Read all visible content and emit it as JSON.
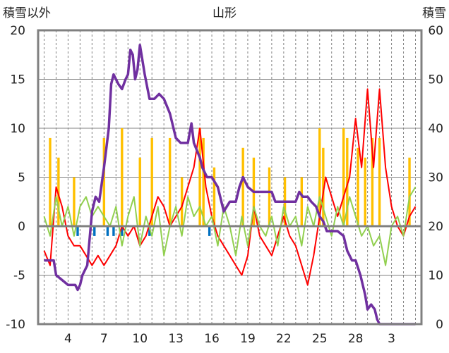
{
  "chart_data": {
    "type": "line",
    "title": "山形",
    "left_axis_label": "積雪以外",
    "right_axis_label": "積雪",
    "left_ylim": [
      -10,
      20
    ],
    "right_ylim": [
      0,
      60
    ],
    "left_ticks": [
      "20",
      "15",
      "10",
      "5",
      "0",
      "-5",
      "-10"
    ],
    "right_ticks": [
      "60",
      "50",
      "40",
      "30",
      "20",
      "10",
      "0"
    ],
    "x_tick_labels": [
      "4",
      "7",
      "10",
      "13",
      "16",
      "19",
      "22",
      "25",
      "28",
      "3"
    ],
    "grid": true,
    "colors": {
      "precip": "#ffc000",
      "temp": "#ff0000",
      "green": "#92d050",
      "blue": "#0070c0",
      "snow": "#7030a0",
      "grid": "#808080",
      "frame": "#808080"
    },
    "series": [
      {
        "color": "#ff0000",
        "axis": "left",
        "points": [
          [
            2.0,
            -2.5
          ],
          [
            2.5,
            -4
          ],
          [
            3.0,
            4
          ],
          [
            3.5,
            2
          ],
          [
            4.0,
            -1
          ],
          [
            4.5,
            -2
          ],
          [
            5.0,
            -2
          ],
          [
            5.5,
            -3
          ],
          [
            6.0,
            -4
          ],
          [
            6.5,
            -3
          ],
          [
            7.0,
            -4
          ],
          [
            7.5,
            -3
          ],
          [
            8.0,
            -2
          ],
          [
            8.5,
            0
          ],
          [
            9.0,
            -1
          ],
          [
            9.5,
            0
          ],
          [
            10.0,
            -2
          ],
          [
            10.5,
            -1
          ],
          [
            11.0,
            1
          ],
          [
            11.5,
            3
          ],
          [
            12.0,
            2
          ],
          [
            12.5,
            0
          ],
          [
            13.0,
            1
          ],
          [
            13.5,
            2
          ],
          [
            14.0,
            4
          ],
          [
            14.5,
            6
          ],
          [
            15.0,
            10
          ],
          [
            15.5,
            4
          ],
          [
            16.0,
            1
          ],
          [
            16.5,
            -1
          ],
          [
            17.0,
            -2
          ],
          [
            17.5,
            -3
          ],
          [
            18.0,
            -4
          ],
          [
            18.5,
            -5
          ],
          [
            19.0,
            -3
          ],
          [
            19.5,
            2
          ],
          [
            20.0,
            -1
          ],
          [
            20.5,
            -2
          ],
          [
            21.0,
            -3
          ],
          [
            21.5,
            -1
          ],
          [
            22.0,
            1
          ],
          [
            22.5,
            -1
          ],
          [
            23.0,
            -2
          ],
          [
            23.5,
            -4
          ],
          [
            24.0,
            -6
          ],
          [
            24.5,
            -3
          ],
          [
            25.0,
            1
          ],
          [
            25.5,
            5
          ],
          [
            26.0,
            3
          ],
          [
            26.5,
            1
          ],
          [
            27.0,
            3
          ],
          [
            27.5,
            5
          ],
          [
            28.0,
            11
          ],
          [
            28.5,
            6
          ],
          [
            29.0,
            14
          ],
          [
            29.5,
            6
          ],
          [
            30.0,
            14
          ],
          [
            30.5,
            6
          ],
          [
            31.0,
            2
          ],
          [
            31.5,
            0
          ],
          [
            32.0,
            -1
          ],
          [
            32.5,
            1
          ],
          [
            33.0,
            2
          ]
        ]
      },
      {
        "color": "#92d050",
        "axis": "left",
        "points": [
          [
            2.0,
            1
          ],
          [
            2.5,
            -1
          ],
          [
            3.0,
            3
          ],
          [
            3.5,
            0
          ],
          [
            4.0,
            2
          ],
          [
            4.5,
            -1
          ],
          [
            5.0,
            2
          ],
          [
            5.5,
            3
          ],
          [
            6.0,
            1
          ],
          [
            6.5,
            2
          ],
          [
            7.0,
            1
          ],
          [
            7.5,
            0
          ],
          [
            8.0,
            2
          ],
          [
            8.5,
            -2
          ],
          [
            9.0,
            1
          ],
          [
            9.5,
            3
          ],
          [
            10.0,
            -2
          ],
          [
            10.5,
            1
          ],
          [
            11.0,
            -1
          ],
          [
            11.5,
            2
          ],
          [
            12.0,
            -3
          ],
          [
            12.5,
            0
          ],
          [
            13.0,
            2
          ],
          [
            13.5,
            -1
          ],
          [
            14.0,
            3
          ],
          [
            14.5,
            1
          ],
          [
            15.0,
            2
          ],
          [
            15.5,
            0
          ],
          [
            16.0,
            1
          ],
          [
            16.5,
            -2
          ],
          [
            17.0,
            2
          ],
          [
            17.5,
            0
          ],
          [
            18.0,
            -3
          ],
          [
            18.5,
            1
          ],
          [
            19.0,
            -2
          ],
          [
            19.5,
            2
          ],
          [
            20.0,
            0
          ],
          [
            20.5,
            -1
          ],
          [
            21.0,
            1
          ],
          [
            21.5,
            -2
          ],
          [
            22.0,
            2
          ],
          [
            22.5,
            0
          ],
          [
            23.0,
            1
          ],
          [
            23.5,
            -2
          ],
          [
            24.0,
            2
          ],
          [
            24.5,
            0
          ],
          [
            25.0,
            3
          ],
          [
            25.5,
            1
          ],
          [
            26.0,
            -1
          ],
          [
            26.5,
            2
          ],
          [
            27.0,
            0
          ],
          [
            27.5,
            3
          ],
          [
            28.0,
            1
          ],
          [
            28.5,
            -1
          ],
          [
            29.0,
            0
          ],
          [
            29.5,
            -2
          ],
          [
            30.0,
            -1
          ],
          [
            30.5,
            -4
          ],
          [
            31.0,
            0
          ],
          [
            31.5,
            1
          ],
          [
            32.0,
            -1
          ],
          [
            32.5,
            3
          ],
          [
            33.0,
            4
          ]
        ]
      },
      {
        "color": "#7030a0",
        "axis": "right",
        "points": [
          [
            2.0,
            13
          ],
          [
            2.8,
            13
          ],
          [
            3.0,
            10
          ],
          [
            3.5,
            9
          ],
          [
            4.0,
            8
          ],
          [
            4.3,
            8
          ],
          [
            4.6,
            8
          ],
          [
            4.8,
            7
          ],
          [
            5.0,
            8
          ],
          [
            5.2,
            10
          ],
          [
            5.6,
            12
          ],
          [
            6.0,
            23
          ],
          [
            6.3,
            26
          ],
          [
            6.6,
            25
          ],
          [
            7.0,
            32
          ],
          [
            7.4,
            40
          ],
          [
            7.6,
            49
          ],
          [
            7.8,
            51
          ],
          [
            8.0,
            50
          ],
          [
            8.2,
            49
          ],
          [
            8.5,
            48
          ],
          [
            8.8,
            50
          ],
          [
            9.0,
            51
          ],
          [
            9.2,
            56
          ],
          [
            9.4,
            55
          ],
          [
            9.6,
            50
          ],
          [
            9.8,
            52
          ],
          [
            10.0,
            57
          ],
          [
            10.2,
            54
          ],
          [
            10.4,
            51
          ],
          [
            10.8,
            46
          ],
          [
            11.2,
            46
          ],
          [
            11.6,
            47
          ],
          [
            12.0,
            46
          ],
          [
            12.5,
            43
          ],
          [
            13.0,
            38
          ],
          [
            13.4,
            37
          ],
          [
            13.8,
            37
          ],
          [
            14.0,
            37
          ],
          [
            14.3,
            41
          ],
          [
            14.5,
            37
          ],
          [
            15.0,
            34
          ],
          [
            15.2,
            32
          ],
          [
            15.6,
            30
          ],
          [
            16.0,
            30
          ],
          [
            16.5,
            28
          ],
          [
            17.0,
            23
          ],
          [
            17.5,
            25
          ],
          [
            18.0,
            25
          ],
          [
            18.3,
            28
          ],
          [
            18.6,
            30
          ],
          [
            19.0,
            28
          ],
          [
            19.5,
            27
          ],
          [
            20.0,
            27
          ],
          [
            20.5,
            27
          ],
          [
            21.0,
            27
          ],
          [
            21.3,
            25
          ],
          [
            22.0,
            25
          ],
          [
            22.5,
            25
          ],
          [
            23.0,
            25
          ],
          [
            23.3,
            27
          ],
          [
            23.6,
            26
          ],
          [
            24.0,
            26
          ],
          [
            24.3,
            25
          ],
          [
            24.7,
            24
          ],
          [
            25.0,
            22
          ],
          [
            25.3,
            21
          ],
          [
            25.6,
            19
          ],
          [
            26.0,
            19
          ],
          [
            26.5,
            19
          ],
          [
            27.0,
            18
          ],
          [
            27.3,
            15
          ],
          [
            27.7,
            13
          ],
          [
            28.0,
            13
          ],
          [
            28.4,
            10
          ],
          [
            28.8,
            6
          ],
          [
            29.0,
            3
          ],
          [
            29.3,
            4
          ],
          [
            29.6,
            3
          ],
          [
            29.8,
            1
          ],
          [
            30.0,
            0
          ],
          [
            31.0,
            0
          ],
          [
            32.0,
            0
          ],
          [
            33.0,
            0
          ]
        ]
      }
    ],
    "bars": [
      {
        "color": "#ffc000",
        "axis": "left",
        "points": [
          [
            2.5,
            9
          ],
          [
            3.2,
            7
          ],
          [
            4.5,
            5
          ],
          [
            7.0,
            9
          ],
          [
            8.5,
            10
          ],
          [
            10.0,
            7
          ],
          [
            11.0,
            9
          ],
          [
            12.5,
            9
          ],
          [
            13.5,
            5
          ],
          [
            15.0,
            10
          ],
          [
            15.3,
            9
          ],
          [
            16.2,
            6
          ],
          [
            18.6,
            8
          ],
          [
            19.5,
            7
          ],
          [
            20.8,
            6
          ],
          [
            22.1,
            5
          ],
          [
            23.5,
            5
          ],
          [
            25.0,
            10
          ],
          [
            25.3,
            8
          ],
          [
            27.0,
            10
          ],
          [
            27.3,
            9
          ],
          [
            28.2,
            8
          ],
          [
            28.8,
            7
          ],
          [
            29.4,
            9
          ],
          [
            30.0,
            9
          ],
          [
            32.5,
            7
          ]
        ]
      },
      {
        "color": "#0070c0",
        "axis": "left",
        "points": [
          [
            4.8,
            -1
          ],
          [
            6.2,
            -1
          ],
          [
            7.3,
            -1
          ],
          [
            7.8,
            -1
          ],
          [
            8.5,
            -1
          ],
          [
            10.8,
            -1
          ],
          [
            15.8,
            -1
          ]
        ]
      }
    ]
  }
}
